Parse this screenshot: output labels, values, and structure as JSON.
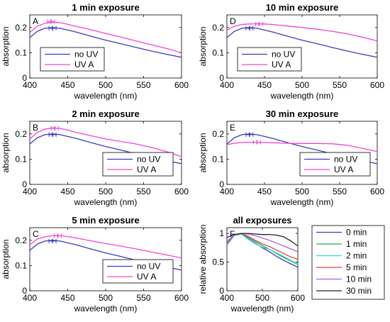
{
  "chart_data": [
    {
      "type": "line",
      "panel_label": "A",
      "title": "1 min exposure",
      "xlabel": "wavelength (nm)",
      "ylabel": "absorption",
      "xlim": [
        400,
        600
      ],
      "ylim": [
        0,
        0.25
      ],
      "xticks": [
        "400",
        "450",
        "500",
        "550",
        "600"
      ],
      "yticks": [
        "0",
        "0.1",
        "0.2"
      ],
      "legend_position": "bottom-left",
      "series": [
        {
          "name": "no UV",
          "color": "#3b3bbf",
          "x": [
            400,
            410,
            420,
            430,
            440,
            450,
            460,
            480,
            500,
            520,
            540,
            560,
            580,
            600
          ],
          "y": [
            0.16,
            0.185,
            0.197,
            0.2,
            0.197,
            0.19,
            0.183,
            0.166,
            0.15,
            0.136,
            0.121,
            0.107,
            0.094,
            0.082
          ],
          "peak_marker": {
            "x": 430,
            "y": 0.197
          }
        },
        {
          "name": "UV A",
          "color": "#f244cf",
          "x": [
            400,
            410,
            420,
            430,
            440,
            450,
            460,
            480,
            500,
            520,
            540,
            560,
            580,
            600
          ],
          "y": [
            0.18,
            0.205,
            0.217,
            0.221,
            0.219,
            0.213,
            0.205,
            0.192,
            0.176,
            0.162,
            0.147,
            0.132,
            0.117,
            0.1
          ],
          "peak_marker": {
            "x": 428,
            "y": 0.224
          }
        }
      ]
    },
    {
      "type": "line",
      "panel_label": "D",
      "title": "10 min exposure",
      "xlabel": "wavelength (nm)",
      "ylabel": "absorption",
      "xlim": [
        400,
        600
      ],
      "ylim": [
        0,
        0.25
      ],
      "xticks": [
        "400",
        "450",
        "500",
        "550",
        "600"
      ],
      "yticks": [
        "0",
        "0.1",
        "0.2"
      ],
      "legend_position": "bottom-left",
      "series": [
        {
          "name": "no UV",
          "color": "#3b3bbf",
          "x": [
            400,
            410,
            420,
            430,
            440,
            450,
            460,
            480,
            500,
            520,
            540,
            560,
            580,
            600
          ],
          "y": [
            0.16,
            0.185,
            0.197,
            0.2,
            0.197,
            0.19,
            0.183,
            0.166,
            0.15,
            0.136,
            0.121,
            0.107,
            0.094,
            0.082
          ],
          "peak_marker": {
            "x": 430,
            "y": 0.197
          }
        },
        {
          "name": "UV A",
          "color": "#f244cf",
          "x": [
            400,
            410,
            420,
            430,
            440,
            450,
            460,
            480,
            500,
            520,
            540,
            560,
            580,
            600
          ],
          "y": [
            0.19,
            0.205,
            0.212,
            0.214,
            0.215,
            0.214,
            0.212,
            0.206,
            0.2,
            0.193,
            0.185,
            0.175,
            0.162,
            0.147
          ],
          "peak_marker": {
            "x": 443,
            "y": 0.214
          }
        }
      ]
    },
    {
      "type": "line",
      "panel_label": "B",
      "title": "2 min exposure",
      "xlabel": "wavelength (nm)",
      "ylabel": "absorption",
      "xlim": [
        400,
        600
      ],
      "ylim": [
        0,
        0.25
      ],
      "xticks": [
        "400",
        "450",
        "500",
        "550",
        "600"
      ],
      "yticks": [
        "0",
        "0.1",
        "0.2"
      ],
      "legend_position": "bottom-right",
      "series": [
        {
          "name": "no UV",
          "color": "#3b3bbf",
          "x": [
            400,
            410,
            420,
            430,
            440,
            450,
            460,
            480,
            500,
            520,
            540,
            560,
            580,
            600
          ],
          "y": [
            0.16,
            0.185,
            0.197,
            0.2,
            0.197,
            0.19,
            0.183,
            0.166,
            0.15,
            0.136,
            0.121,
            0.107,
            0.094,
            0.082
          ],
          "peak_marker": {
            "x": 430,
            "y": 0.197
          }
        },
        {
          "name": "UV A",
          "color": "#f244cf",
          "x": [
            400,
            410,
            420,
            430,
            440,
            450,
            460,
            480,
            500,
            520,
            540,
            560,
            580,
            600
          ],
          "y": [
            0.18,
            0.206,
            0.219,
            0.224,
            0.222,
            0.215,
            0.207,
            0.193,
            0.18,
            0.17,
            0.16,
            0.147,
            0.13,
            0.11
          ],
          "peak_marker": {
            "x": 433,
            "y": 0.222
          }
        }
      ]
    },
    {
      "type": "line",
      "panel_label": "E",
      "title": "30 min exposure",
      "xlabel": "wavelength (nm)",
      "ylabel": "absorption",
      "xlim": [
        400,
        600
      ],
      "ylim": [
        0,
        0.25
      ],
      "xticks": [
        "400",
        "450",
        "500",
        "550",
        "600"
      ],
      "yticks": [
        "0",
        "0.1",
        "0.2"
      ],
      "legend_position": "bottom-right",
      "series": [
        {
          "name": "no UV",
          "color": "#3b3bbf",
          "x": [
            400,
            410,
            420,
            430,
            440,
            450,
            460,
            480,
            500,
            520,
            540,
            560,
            580,
            600
          ],
          "y": [
            0.16,
            0.185,
            0.197,
            0.2,
            0.197,
            0.19,
            0.183,
            0.166,
            0.15,
            0.136,
            0.121,
            0.107,
            0.094,
            0.082
          ],
          "peak_marker": {
            "x": 430,
            "y": 0.197
          }
        },
        {
          "name": "UV A",
          "color": "#f244cf",
          "x": [
            400,
            410,
            420,
            430,
            440,
            450,
            460,
            480,
            500,
            520,
            540,
            560,
            580,
            600
          ],
          "y": [
            0.158,
            0.163,
            0.166,
            0.167,
            0.167,
            0.166,
            0.165,
            0.163,
            0.162,
            0.162,
            0.161,
            0.155,
            0.143,
            0.13
          ],
          "peak_marker": {
            "x": 440,
            "y": 0.167
          }
        }
      ]
    },
    {
      "type": "line",
      "panel_label": "C",
      "title": "5 min exposure",
      "xlabel": "wavelength (nm)",
      "ylabel": "absorption",
      "xlim": [
        400,
        600
      ],
      "ylim": [
        0,
        0.25
      ],
      "xticks": [
        "400",
        "450",
        "500",
        "550",
        "600"
      ],
      "yticks": [
        "0",
        "0.1",
        "0.2"
      ],
      "legend_position": "bottom-right",
      "series": [
        {
          "name": "no UV",
          "color": "#3b3bbf",
          "x": [
            400,
            410,
            420,
            430,
            440,
            450,
            460,
            480,
            500,
            520,
            540,
            560,
            580,
            600
          ],
          "y": [
            0.16,
            0.185,
            0.197,
            0.2,
            0.197,
            0.19,
            0.183,
            0.166,
            0.15,
            0.136,
            0.121,
            0.107,
            0.094,
            0.082
          ],
          "peak_marker": {
            "x": 430,
            "y": 0.197
          }
        },
        {
          "name": "UV A",
          "color": "#f244cf",
          "x": [
            400,
            410,
            420,
            430,
            440,
            450,
            460,
            480,
            500,
            520,
            540,
            560,
            580,
            600
          ],
          "y": [
            0.183,
            0.205,
            0.214,
            0.218,
            0.218,
            0.215,
            0.21,
            0.198,
            0.187,
            0.177,
            0.166,
            0.154,
            0.142,
            0.13
          ],
          "peak_marker": {
            "x": 437,
            "y": 0.218
          }
        }
      ]
    },
    {
      "type": "line",
      "panel_label": "F",
      "title": "all exposures",
      "xlabel": "wavelength (nm)",
      "ylabel": "relative absorption",
      "xlim": [
        400,
        600
      ],
      "ylim": [
        0,
        1.1
      ],
      "xticks": [
        "400",
        "500",
        "600"
      ],
      "yticks": [
        "0",
        "0.5",
        "1"
      ],
      "legend_position": "outside-right",
      "series": [
        {
          "name": "0 min",
          "color": "#3b3bbf",
          "x": [
            400,
            420,
            440,
            460,
            480,
            500,
            520,
            540,
            560,
            580,
            600
          ],
          "y": [
            0.8,
            0.96,
            0.99,
            0.91,
            0.83,
            0.75,
            0.68,
            0.6,
            0.53,
            0.47,
            0.41
          ]
        },
        {
          "name": "1 min",
          "color": "#2ea84a",
          "x": [
            400,
            420,
            440,
            460,
            480,
            500,
            520,
            540,
            560,
            580,
            600
          ],
          "y": [
            0.82,
            0.97,
            0.99,
            0.93,
            0.86,
            0.79,
            0.72,
            0.65,
            0.58,
            0.52,
            0.46
          ]
        },
        {
          "name": "2 min",
          "color": "#33d6e6",
          "x": [
            400,
            420,
            440,
            460,
            480,
            500,
            520,
            540,
            560,
            580,
            600
          ],
          "y": [
            0.81,
            0.96,
            0.99,
            0.9,
            0.82,
            0.76,
            0.72,
            0.66,
            0.6,
            0.53,
            0.47
          ]
        },
        {
          "name": "5 min",
          "color": "#d24a3a",
          "x": [
            400,
            420,
            440,
            460,
            480,
            500,
            520,
            540,
            560,
            580,
            600
          ],
          "y": [
            0.83,
            0.97,
            1.0,
            0.95,
            0.88,
            0.82,
            0.77,
            0.71,
            0.65,
            0.59,
            0.55
          ]
        },
        {
          "name": "10 min",
          "color": "#b45ae6",
          "x": [
            400,
            420,
            440,
            460,
            480,
            500,
            520,
            540,
            560,
            580,
            600
          ],
          "y": [
            0.86,
            0.97,
            1.0,
            0.99,
            0.96,
            0.92,
            0.88,
            0.83,
            0.78,
            0.73,
            0.68
          ]
        },
        {
          "name": "30 min",
          "color": "#222222",
          "x": [
            400,
            420,
            440,
            460,
            480,
            500,
            520,
            540,
            560,
            580,
            600
          ],
          "y": [
            0.93,
            0.98,
            1.0,
            1.0,
            0.99,
            0.98,
            0.98,
            0.97,
            0.94,
            0.87,
            0.78
          ]
        }
      ]
    }
  ]
}
